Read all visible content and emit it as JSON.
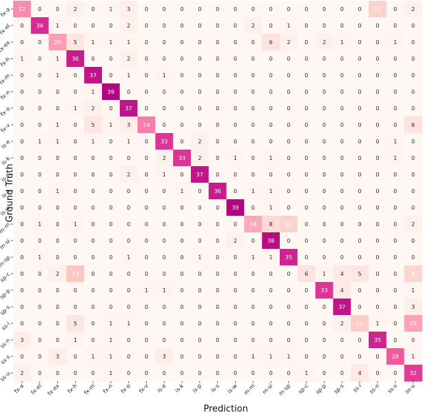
{
  "chart_data": {
    "type": "heatmap",
    "title": "",
    "xlabel": "Prediction",
    "ylabel": "Ground Truth",
    "x_labels": [
      "fx-a",
      "fx-el",
      "fx-ex",
      "fx-h",
      "fx-m",
      "fx-n",
      "fx-o",
      "fx-v",
      "is-e",
      "is-k",
      "is-p",
      "is-s",
      "is-w",
      "m-m",
      "m-si",
      "m-sp",
      "sp-c",
      "sp-p",
      "sp-s",
      "ss-i",
      "ss-n",
      "ss-s",
      "ss-u"
    ],
    "y_labels": [
      "fx-a",
      "fx-el",
      "fx-ex",
      "fx-h",
      "fx-m",
      "fx-n",
      "fx-o",
      "fx-v",
      "is-e",
      "is-k",
      "is-p",
      "is-s",
      "is-w",
      "m-m",
      "m-si",
      "m-sp",
      "sp-c",
      "sp-p",
      "sp-s",
      "ss-i",
      "ss-n",
      "ss-s",
      "ss-u"
    ],
    "values": [
      [
        22,
        0,
        0,
        2,
        0,
        1,
        3,
        0,
        0,
        0,
        0,
        0,
        0,
        0,
        0,
        0,
        0,
        0,
        0,
        0,
        10,
        0,
        2
      ],
      [
        0,
        34,
        1,
        0,
        0,
        0,
        2,
        0,
        0,
        0,
        0,
        0,
        0,
        2,
        0,
        1,
        0,
        0,
        0,
        0,
        0,
        0,
        0
      ],
      [
        0,
        0,
        20,
        5,
        1,
        1,
        1,
        0,
        0,
        0,
        0,
        0,
        0,
        0,
        6,
        2,
        0,
        2,
        1,
        0,
        0,
        1,
        0
      ],
      [
        1,
        0,
        1,
        36,
        0,
        0,
        2,
        0,
        0,
        0,
        0,
        0,
        0,
        0,
        0,
        0,
        0,
        0,
        0,
        0,
        0,
        0,
        0
      ],
      [
        0,
        0,
        1,
        0,
        37,
        0,
        1,
        0,
        1,
        0,
        0,
        0,
        0,
        0,
        0,
        0,
        0,
        0,
        0,
        0,
        0,
        0,
        0
      ],
      [
        0,
        0,
        0,
        0,
        1,
        39,
        0,
        0,
        0,
        0,
        0,
        0,
        0,
        0,
        0,
        0,
        0,
        0,
        0,
        0,
        0,
        0,
        0
      ],
      [
        0,
        0,
        0,
        1,
        2,
        0,
        37,
        0,
        0,
        0,
        0,
        0,
        0,
        0,
        0,
        0,
        0,
        0,
        0,
        0,
        0,
        0,
        0
      ],
      [
        0,
        0,
        1,
        0,
        5,
        1,
        3,
        24,
        0,
        0,
        0,
        0,
        0,
        0,
        0,
        0,
        0,
        0,
        0,
        0,
        0,
        0,
        6
      ],
      [
        0,
        1,
        1,
        0,
        1,
        0,
        1,
        0,
        33,
        0,
        2,
        0,
        0,
        0,
        0,
        0,
        0,
        0,
        0,
        0,
        0,
        1,
        0
      ],
      [
        0,
        0,
        0,
        0,
        0,
        0,
        0,
        0,
        2,
        33,
        2,
        0,
        1,
        0,
        1,
        0,
        0,
        0,
        0,
        0,
        0,
        1,
        0
      ],
      [
        0,
        0,
        0,
        0,
        0,
        0,
        2,
        0,
        1,
        0,
        37,
        0,
        0,
        0,
        0,
        0,
        0,
        0,
        0,
        0,
        0,
        0,
        0
      ],
      [
        0,
        0,
        1,
        0,
        0,
        0,
        0,
        0,
        0,
        1,
        0,
        36,
        0,
        1,
        1,
        0,
        0,
        0,
        0,
        0,
        0,
        0,
        0
      ],
      [
        0,
        0,
        0,
        0,
        0,
        0,
        0,
        0,
        0,
        0,
        0,
        0,
        39,
        0,
        1,
        0,
        0,
        0,
        0,
        0,
        0,
        0,
        0
      ],
      [
        0,
        1,
        0,
        1,
        0,
        0,
        0,
        0,
        0,
        0,
        0,
        0,
        0,
        18,
        8,
        10,
        0,
        0,
        0,
        0,
        0,
        0,
        2
      ],
      [
        0,
        0,
        0,
        0,
        0,
        0,
        0,
        0,
        0,
        0,
        0,
        0,
        2,
        0,
        38,
        0,
        0,
        0,
        0,
        0,
        0,
        0,
        0
      ],
      [
        0,
        1,
        0,
        0,
        0,
        0,
        1,
        0,
        0,
        0,
        1,
        0,
        0,
        1,
        1,
        35,
        0,
        0,
        0,
        0,
        0,
        0,
        0
      ],
      [
        0,
        0,
        2,
        13,
        0,
        0,
        0,
        0,
        0,
        0,
        0,
        0,
        0,
        0,
        0,
        0,
        6,
        1,
        4,
        5,
        0,
        0,
        9
      ],
      [
        0,
        0,
        0,
        0,
        0,
        0,
        0,
        1,
        1,
        0,
        0,
        0,
        0,
        0,
        0,
        0,
        0,
        33,
        4,
        0,
        0,
        0,
        1
      ],
      [
        0,
        0,
        0,
        0,
        0,
        0,
        0,
        0,
        0,
        0,
        0,
        0,
        0,
        0,
        0,
        0,
        0,
        0,
        37,
        0,
        0,
        0,
        3
      ],
      [
        0,
        0,
        0,
        5,
        0,
        1,
        1,
        0,
        0,
        0,
        0,
        0,
        0,
        0,
        0,
        0,
        0,
        0,
        2,
        11,
        1,
        0,
        19
      ],
      [
        3,
        0,
        0,
        1,
        0,
        1,
        0,
        0,
        0,
        0,
        0,
        0,
        0,
        0,
        0,
        0,
        0,
        0,
        0,
        0,
        35,
        0,
        0
      ],
      [
        0,
        0,
        3,
        0,
        1,
        1,
        0,
        0,
        3,
        0,
        0,
        0,
        0,
        1,
        1,
        1,
        0,
        0,
        0,
        0,
        0,
        28,
        1
      ],
      [
        2,
        0,
        0,
        0,
        0,
        1,
        0,
        0,
        0,
        0,
        0,
        0,
        0,
        0,
        0,
        0,
        1,
        0,
        0,
        4,
        0,
        0,
        32
      ]
    ],
    "value_range": [
      0,
      39
    ],
    "colormap": {
      "low": "#fff7f3",
      "mid": "#f768a1",
      "high": "#7a0177"
    },
    "text_color_light": "#ffffff",
    "text_color_dark": "#262626",
    "grid": false,
    "legend": "none"
  }
}
